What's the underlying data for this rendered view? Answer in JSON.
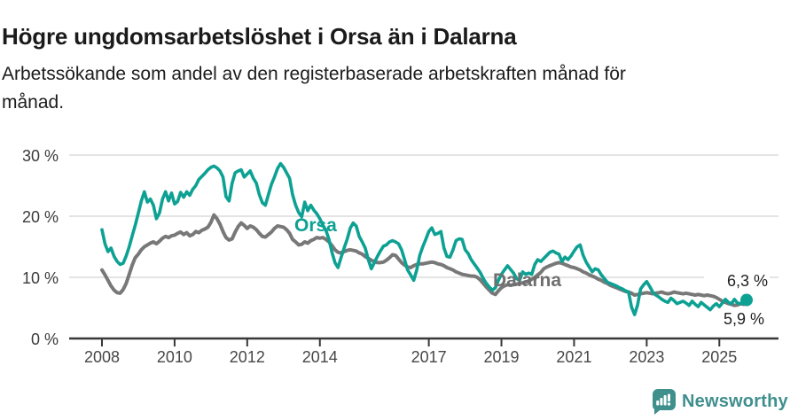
{
  "header": {
    "title": "Högre ungdomsarbetslöshet i Orsa än i Dalarna",
    "subtitle_line1": "Arbetssökande som andel av den registerbaserade arbetskraften månad för",
    "subtitle_line2": "månad."
  },
  "chart_data": {
    "type": "line",
    "title": "Högre ungdomsarbetslöshet i Orsa än i Dalarna",
    "subtitle": "Arbetssökande som andel av den registerbaserade arbetskraften månad för månad.",
    "unit": "%",
    "x_start": "2008-01",
    "x_end": "2025-10",
    "frequency": "monthly",
    "grid": "horizontal",
    "legend": "inline-labels",
    "y_axis": {
      "ticks": [
        "0 %",
        "10 %",
        "20 %",
        "30 %"
      ],
      "tick_values": [
        0,
        10,
        20,
        30
      ],
      "range": [
        0,
        31
      ]
    },
    "x_axis": {
      "tick_years": [
        2008,
        2010,
        2012,
        2014,
        2017,
        2019,
        2021,
        2023,
        2025
      ]
    },
    "series": [
      {
        "name": "Orsa",
        "color": "#0DA193",
        "end_label": "6,3 %",
        "end_value": 6.3,
        "values": [
          17.8,
          15.5,
          14.2,
          14.8,
          13.4,
          12.6,
          12.1,
          12.3,
          13.5,
          15.0,
          16.8,
          18.5,
          20.5,
          22.5,
          24.0,
          22.3,
          22.8,
          21.8,
          19.6,
          20.5,
          22.8,
          24.0,
          22.5,
          23.8,
          22.0,
          22.4,
          23.9,
          23.1,
          24.0,
          23.4,
          24.4,
          25.0,
          26.0,
          26.5,
          27.0,
          27.6,
          28.0,
          28.2,
          27.9,
          27.4,
          26.4,
          23.2,
          22.5,
          25.4,
          27.1,
          27.4,
          27.6,
          26.4,
          26.9,
          27.4,
          26.2,
          25.4,
          23.5,
          22.2,
          21.8,
          23.5,
          25.2,
          26.4,
          27.8,
          28.6,
          28.0,
          27.1,
          26.2,
          23.5,
          21.8,
          20.6,
          19.9,
          22.3,
          20.9,
          21.8,
          21.0,
          20.4,
          19.6,
          18.5,
          17.7,
          16.2,
          14.1,
          12.4,
          11.6,
          13.2,
          14.8,
          16.2,
          18.0,
          18.9,
          18.4,
          16.7,
          15.8,
          14.8,
          12.9,
          11.4,
          12.4,
          13.4,
          14.3,
          15.1,
          15.3,
          15.8,
          16.0,
          15.8,
          15.5,
          14.5,
          12.9,
          11.2,
          10.4,
          9.5,
          11.2,
          13.6,
          15.0,
          16.2,
          17.5,
          18.1,
          17.0,
          17.2,
          17.5,
          14.8,
          13.4,
          13.3,
          14.5,
          16.0,
          16.3,
          16.2,
          14.5,
          13.9,
          12.9,
          12.2,
          11.5,
          10.8,
          9.8,
          9.0,
          8.4,
          7.9,
          8.3,
          9.5,
          10.5,
          11.2,
          11.9,
          11.3,
          10.7,
          9.8,
          9.5,
          10.9,
          10.5,
          10.7,
          10.5,
          12.1,
          12.9,
          12.6,
          13.1,
          13.6,
          14.1,
          14.3,
          14.0,
          13.8,
          12.6,
          13.3,
          12.9,
          13.5,
          14.3,
          15.0,
          15.3,
          13.6,
          12.5,
          11.7,
          10.9,
          11.4,
          11.2,
          10.4,
          9.8,
          9.2,
          9.0,
          8.8,
          8.6,
          8.3,
          8.1,
          7.8,
          7.6,
          5.1,
          3.9,
          5.5,
          8.1,
          8.8,
          9.3,
          8.5,
          7.6,
          7.1,
          6.8,
          6.4,
          6.1,
          5.9,
          6.6,
          6.2,
          5.7,
          5.9,
          6.1,
          5.8,
          5.4,
          6.1,
          5.6,
          5.2,
          5.9,
          5.5,
          5.1,
          4.7,
          5.3,
          5.7,
          5.2,
          5.8,
          6.4,
          5.9,
          5.7,
          6.4,
          5.8,
          5.7,
          6.1,
          6.3
        ]
      },
      {
        "name": "Dalarna",
        "color": "#787878",
        "end_label": "5,9 %",
        "end_value": 5.9,
        "values": [
          11.2,
          10.4,
          9.5,
          8.6,
          7.9,
          7.5,
          7.4,
          8.0,
          9.0,
          10.5,
          12.0,
          13.2,
          13.8,
          14.5,
          15.0,
          15.3,
          15.6,
          15.8,
          15.5,
          15.9,
          16.4,
          16.7,
          16.5,
          16.8,
          16.9,
          17.2,
          17.4,
          17.0,
          17.3,
          16.8,
          17.0,
          17.5,
          17.3,
          17.7,
          17.9,
          18.2,
          19.0,
          20.2,
          19.6,
          18.7,
          17.5,
          16.5,
          16.1,
          16.3,
          17.4,
          18.3,
          18.9,
          18.5,
          18.0,
          18.4,
          18.2,
          17.8,
          17.2,
          16.7,
          16.6,
          17.0,
          17.4,
          18.0,
          18.4,
          18.3,
          18.2,
          17.8,
          17.2,
          16.2,
          15.8,
          15.3,
          15.4,
          15.8,
          15.6,
          16.0,
          16.2,
          16.5,
          16.4,
          16.5,
          16.2,
          15.8,
          15.2,
          14.5,
          14.1,
          14.0,
          14.2,
          14.4,
          14.5,
          14.4,
          14.3,
          14.0,
          13.8,
          13.4,
          13.1,
          12.8,
          12.6,
          12.4,
          12.4,
          12.5,
          12.8,
          13.2,
          13.7,
          13.6,
          13.0,
          12.4,
          12.0,
          11.7,
          11.6,
          11.9,
          12.1,
          12.2,
          12.2,
          12.3,
          12.4,
          12.5,
          12.4,
          12.2,
          12.1,
          11.9,
          11.6,
          11.4,
          11.2,
          10.9,
          10.7,
          10.5,
          10.4,
          10.3,
          10.2,
          10.2,
          10.0,
          9.6,
          9.0,
          8.4,
          7.9,
          7.4,
          7.2,
          7.8,
          8.3,
          8.6,
          8.8,
          8.7,
          8.8,
          8.9,
          9.0,
          9.1,
          9.2,
          9.4,
          9.7,
          10.0,
          10.4,
          10.8,
          11.4,
          11.7,
          11.9,
          12.1,
          12.3,
          12.4,
          12.3,
          12.1,
          11.9,
          11.7,
          11.6,
          11.4,
          11.2,
          10.9,
          10.7,
          10.4,
          10.2,
          10.0,
          9.7,
          9.5,
          9.2,
          9.0,
          8.7,
          8.5,
          8.3,
          8.1,
          7.9,
          7.7,
          7.6,
          7.4,
          7.1,
          7.2,
          7.3,
          7.4,
          7.5,
          7.4,
          7.3,
          7.4,
          7.5,
          7.6,
          7.4,
          7.3,
          7.4,
          7.6,
          7.5,
          7.4,
          7.3,
          7.4,
          7.3,
          7.2,
          7.1,
          7.2,
          7.1,
          7.0,
          7.1,
          7.0,
          6.9,
          6.7,
          6.4,
          6.1,
          5.9,
          5.7,
          5.6,
          5.4,
          5.5,
          5.7,
          5.6,
          5.9
        ]
      }
    ]
  },
  "footer": {
    "brand": "Newsworthy",
    "brand_color": "#3F8F8D",
    "logo_icon": "bar-chart-speech-bubble-icon"
  }
}
